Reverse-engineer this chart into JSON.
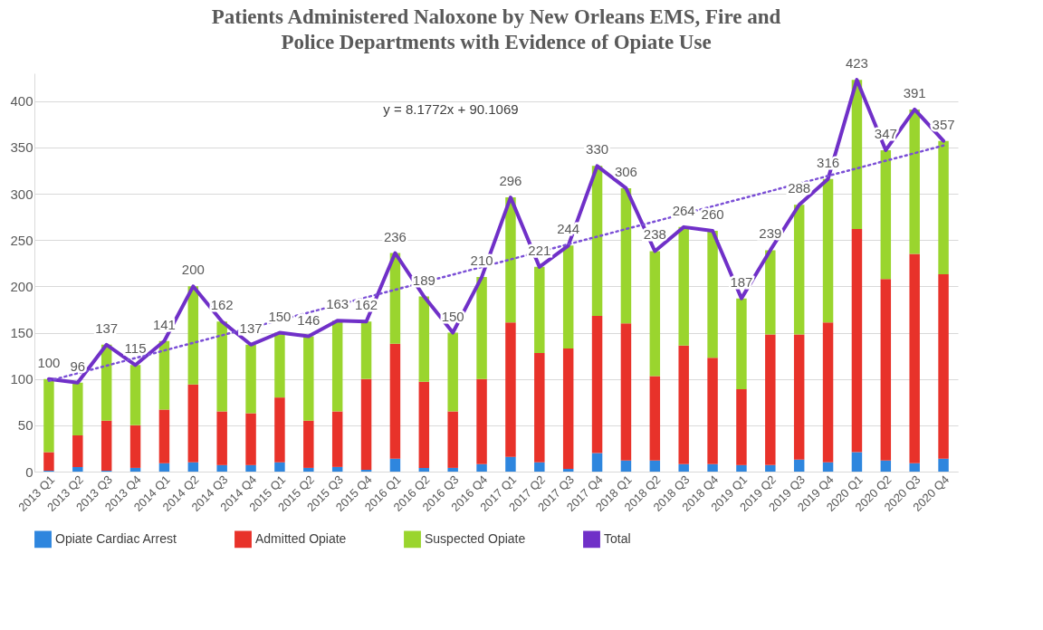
{
  "chart_data": {
    "type": "bar",
    "title": "Patients Administered Naloxone by New Orleans EMS, Fire and Police Departments with Evidence of Opiate Use",
    "categories": [
      "2013 Q1",
      "2013 Q2",
      "2013 Q3",
      "2013 Q4",
      "2014 Q1",
      "2014 Q2",
      "2014 Q3",
      "2014 Q4",
      "2015 Q1",
      "2015 Q2",
      "2015 Q3",
      "2015 Q4",
      "2016 Q1",
      "2016 Q2",
      "2016 Q3",
      "2016 Q4",
      "2017 Q1",
      "2017 Q2",
      "2017 Q3",
      "2017 Q4",
      "2018 Q1",
      "2018 Q2",
      "2018 Q3",
      "2018 Q4",
      "2019 Q1",
      "2019 Q2",
      "2019 Q3",
      "2019 Q4",
      "2020 Q1",
      "2020 Q2",
      "2020 Q3",
      "2020 Q4"
    ],
    "stacked": true,
    "series": [
      {
        "name": "Opiate Cardiac Arrest",
        "color": "#2e86de",
        "values": [
          1,
          5,
          1,
          4,
          9,
          10,
          7,
          7,
          10,
          4,
          5,
          2,
          14,
          4,
          4,
          8,
          16,
          10,
          3,
          20,
          12,
          12,
          8,
          8,
          7,
          7,
          13,
          10,
          21,
          12,
          9,
          14
        ]
      },
      {
        "name": "Admitted Opiate",
        "color": "#e8322a",
        "values": [
          20,
          34,
          54,
          46,
          58,
          84,
          58,
          56,
          70,
          51,
          60,
          98,
          124,
          93,
          61,
          92,
          145,
          118,
          130,
          148,
          148,
          91,
          128,
          115,
          82,
          141,
          135,
          151,
          241,
          196,
          226,
          199
        ]
      },
      {
        "name": "Suspected Opiate",
        "color": "#9ad52e",
        "values": [
          79,
          57,
          82,
          65,
          74,
          106,
          97,
          74,
          70,
          91,
          98,
          62,
          98,
          92,
          85,
          110,
          135,
          93,
          111,
          162,
          146,
          135,
          128,
          137,
          98,
          91,
          140,
          155,
          161,
          139,
          156,
          144
        ]
      },
      {
        "name": "Total",
        "type": "line",
        "color": "#7030c8",
        "values": [
          100,
          96,
          137,
          115,
          141,
          200,
          162,
          137,
          150,
          146,
          163,
          162,
          236,
          189,
          150,
          210,
          296,
          221,
          244,
          330,
          306,
          238,
          264,
          260,
          187,
          239,
          288,
          316,
          423,
          347,
          391,
          357
        ],
        "value_labels": [
          "100",
          "96",
          "137",
          "115",
          "141",
          "200",
          "162",
          "137",
          "150",
          "146",
          "163",
          "162",
          "236",
          "189",
          "150",
          "210",
          "296",
          "221",
          "244",
          "330",
          "306",
          "238",
          "264",
          "260",
          "187",
          "239",
          "288",
          "316",
          "423",
          "347",
          "391",
          "357"
        ]
      },
      {
        "type": "line",
        "color": "#7b4fd6",
        "line_style": "dotted",
        "x": [
          "2013 Q1",
          "2020 Q4"
        ],
        "values": [
          98,
          352
        ]
      }
    ],
    "annotations": [
      "y = 8.1772x + 90.1069"
    ],
    "ylim": [
      0,
      430
    ],
    "yticks": [
      0,
      50,
      100,
      150,
      200,
      250,
      300,
      350,
      400
    ],
    "grid": "y",
    "legend": "bottom"
  }
}
